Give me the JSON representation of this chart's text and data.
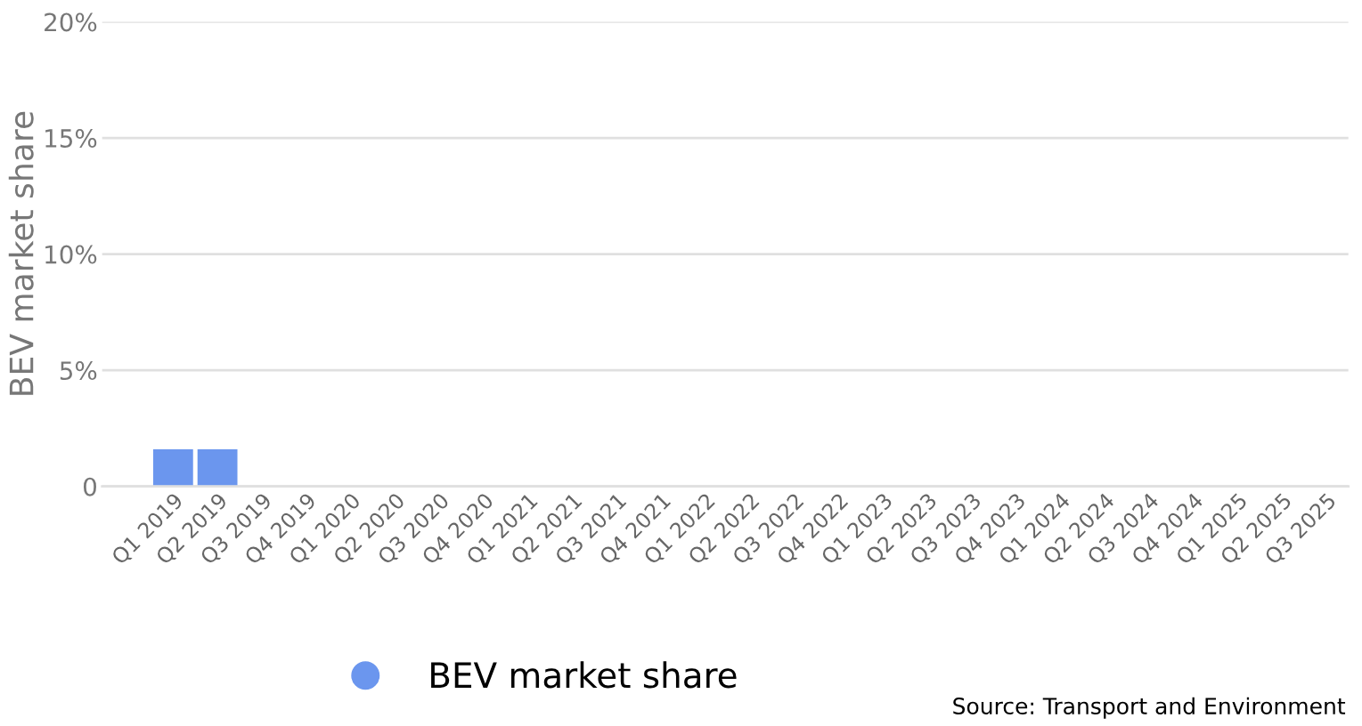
{
  "chart_data": {
    "type": "bar",
    "ylabel": "BEV market share",
    "categories": [
      "Q1 2019",
      "Q2 2019",
      "Q3 2019",
      "Q4 2019",
      "Q1 2020",
      "Q2 2020",
      "Q3 2020",
      "Q4 2020",
      "Q1 2021",
      "Q2 2021",
      "Q3 2021",
      "Q4 2021",
      "Q1 2022",
      "Q2 2022",
      "Q3 2022",
      "Q4 2022",
      "Q1 2023",
      "Q2 2023",
      "Q3 2023",
      "Q4 2023",
      "Q1 2024",
      "Q2 2024",
      "Q3 2024",
      "Q4 2024",
      "Q1 2025",
      "Q2 2025",
      "Q3 2025"
    ],
    "series": [
      {
        "name": "BEV market share",
        "color": "#6b96ee",
        "values": [
          1.6,
          1.6,
          null,
          null,
          null,
          null,
          null,
          null,
          null,
          null,
          null,
          null,
          null,
          null,
          null,
          null,
          null,
          null,
          null,
          null,
          null,
          null,
          null,
          null,
          null,
          null,
          null
        ]
      }
    ],
    "ylim": [
      0,
      20
    ],
    "yticks": [
      {
        "value": 0,
        "label": "0"
      },
      {
        "value": 5,
        "label": "5%"
      },
      {
        "value": 10,
        "label": "10%"
      },
      {
        "value": 15,
        "label": "15%"
      },
      {
        "value": 20,
        "label": "20%"
      }
    ],
    "grid": "y",
    "legend": "bottom",
    "annotations": [
      "Source: Transport and Environment"
    ]
  }
}
